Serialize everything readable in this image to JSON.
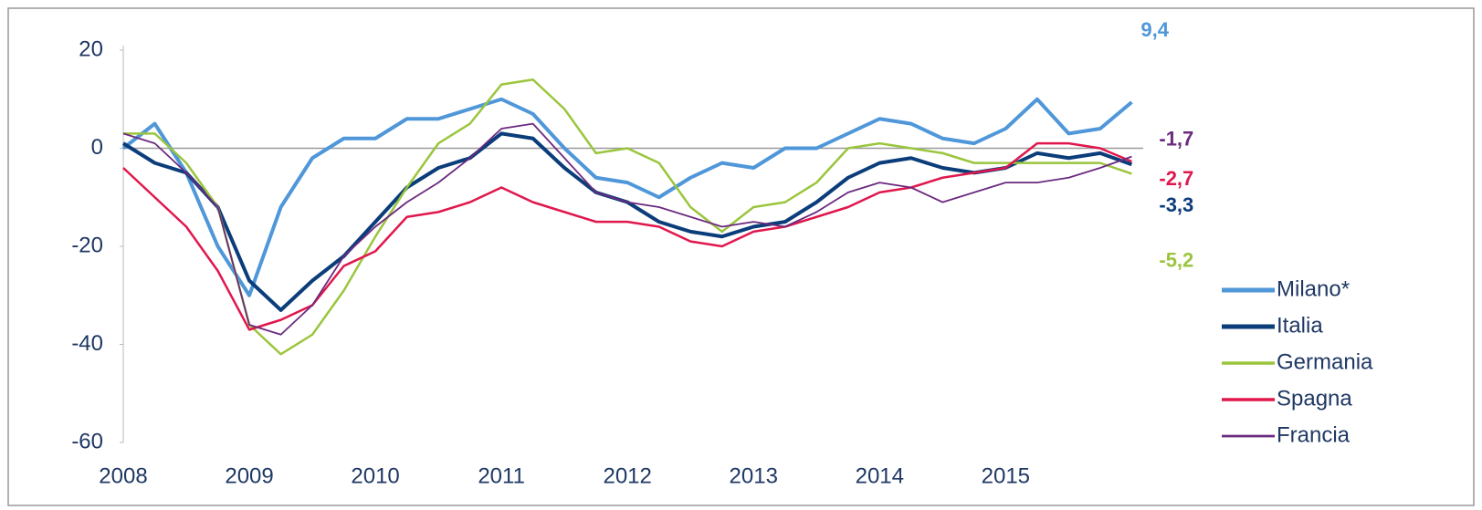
{
  "chart_data": {
    "type": "line",
    "x": [
      2008,
      2008.25,
      2008.5,
      2008.75,
      2009,
      2009.25,
      2009.5,
      2009.75,
      2010,
      2010.25,
      2010.5,
      2010.75,
      2011,
      2011.25,
      2011.5,
      2011.75,
      2012,
      2012.25,
      2012.5,
      2012.75,
      2013,
      2013.25,
      2013.5,
      2013.75,
      2014,
      2014.25,
      2014.5,
      2014.75,
      2015,
      2015.25,
      2015.5,
      2015.75,
      2016
    ],
    "series": [
      {
        "name": "Milano*",
        "color": "#4f97d9",
        "width": 4,
        "values": [
          0,
          5,
          -5,
          -20,
          -30,
          -12,
          -2,
          2,
          2,
          6,
          6,
          8,
          10,
          7,
          0,
          -6,
          -7,
          -10,
          -6,
          -3,
          -4,
          0,
          0,
          3,
          6,
          5,
          2,
          1,
          4,
          10,
          3,
          4,
          9.4
        ],
        "value_labels": [
          null,
          null,
          null,
          null,
          null,
          null,
          null,
          null,
          null,
          null,
          null,
          null,
          null,
          null,
          null,
          null,
          null,
          null,
          null,
          null,
          null,
          null,
          null,
          null,
          null,
          null,
          null,
          null,
          null,
          null,
          null,
          null,
          "9,4"
        ]
      },
      {
        "name": "Italia",
        "color": "#0b3d7a",
        "width": 4,
        "values": [
          1,
          -3,
          -5,
          -12,
          -27,
          -33,
          -27,
          -22,
          -15,
          -8,
          -4,
          -2,
          3,
          2,
          -4,
          -9,
          -11,
          -15,
          -17,
          -18,
          -16,
          -15,
          -11,
          -6,
          -3,
          -2,
          -4,
          -5,
          -4,
          -1,
          -2,
          -1,
          -3.3
        ],
        "value_labels": [
          null,
          null,
          null,
          null,
          null,
          null,
          null,
          null,
          null,
          null,
          null,
          null,
          null,
          null,
          null,
          null,
          null,
          null,
          null,
          null,
          null,
          null,
          null,
          null,
          null,
          null,
          null,
          null,
          null,
          null,
          null,
          null,
          "-3,3"
        ]
      },
      {
        "name": "Germania",
        "color": "#9bc53d",
        "width": 2.5,
        "values": [
          3,
          3,
          -3,
          -12,
          -36,
          -42,
          -38,
          -29,
          -18,
          -8,
          1,
          5,
          13,
          14,
          8,
          -1,
          0,
          -3,
          -12,
          -17,
          -12,
          -11,
          -7,
          0,
          1,
          0,
          -1,
          -3,
          -3,
          -3,
          -3,
          -3,
          -5.2
        ],
        "value_labels": [
          null,
          null,
          null,
          null,
          null,
          null,
          null,
          null,
          null,
          null,
          null,
          null,
          null,
          null,
          null,
          null,
          null,
          null,
          null,
          null,
          null,
          null,
          null,
          null,
          null,
          null,
          null,
          null,
          null,
          null,
          null,
          null,
          "-5,2"
        ]
      },
      {
        "name": "Spagna",
        "color": "#e0174c",
        "width": 2.5,
        "values": [
          -4,
          -10,
          -16,
          -25,
          -37,
          -35,
          -32,
          -24,
          -21,
          -14,
          -13,
          -11,
          -8,
          -11,
          -13,
          -15,
          -15,
          -16,
          -19,
          -20,
          -17,
          -16,
          -14,
          -12,
          -9,
          -8,
          -6,
          -5,
          -4,
          1,
          1,
          0,
          -2.7
        ],
        "value_labels": [
          null,
          null,
          null,
          null,
          null,
          null,
          null,
          null,
          null,
          null,
          null,
          null,
          null,
          null,
          null,
          null,
          null,
          null,
          null,
          null,
          null,
          null,
          null,
          null,
          null,
          null,
          null,
          null,
          null,
          null,
          null,
          null,
          "-2,7"
        ]
      },
      {
        "name": "Francia",
        "color": "#6b2a7f",
        "width": 1.8,
        "values": [
          3,
          1,
          -5,
          -12,
          -36,
          -38,
          -32,
          -22,
          -16,
          -11,
          -7,
          -2,
          4,
          5,
          -2,
          -9,
          -11,
          -12,
          -14,
          -16,
          -15,
          -16,
          -13,
          -9,
          -7,
          -8,
          -11,
          -9,
          -7,
          -7,
          -6,
          -4,
          -1.7
        ],
        "value_labels": [
          null,
          null,
          null,
          null,
          null,
          null,
          null,
          null,
          null,
          null,
          null,
          null,
          null,
          null,
          null,
          null,
          null,
          null,
          null,
          null,
          null,
          null,
          null,
          null,
          null,
          null,
          null,
          null,
          null,
          null,
          null,
          null,
          "-1,7"
        ]
      }
    ],
    "xlim": [
      2008,
      2016.2
    ],
    "xticks": [
      2008,
      2009,
      2010,
      2011,
      2012,
      2013,
      2014,
      2015
    ],
    "ylim": [
      -60,
      20
    ],
    "yticks": [
      20,
      0,
      -20,
      -40,
      -60
    ],
    "legend": "right"
  }
}
